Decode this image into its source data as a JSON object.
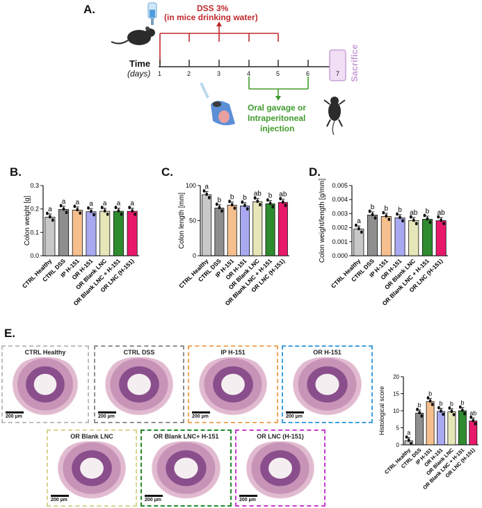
{
  "panelA": {
    "label": "A.",
    "dss_line1": "DSS 3%",
    "dss_line2": "(in mice drinking water)",
    "time_label": "Time",
    "days_label": "(days)",
    "days": [
      "1",
      "2",
      "3",
      "4",
      "5",
      "6",
      "7"
    ],
    "sacrifice": "Sacrifice",
    "treat_line1": "Oral gavage or",
    "treat_line2": "Intraperitoneal",
    "treat_line3": "injection",
    "colors": {
      "dss": "#c0282b",
      "treat": "#3f9a2c",
      "sacrifice": "#c9a1d6"
    }
  },
  "groups": [
    "CTRL Healthy",
    "CTRL DSS",
    "IP H-151",
    "OR H-151",
    "OR Blank LNC",
    "OR Blank LNC + H-151",
    "OR LNC (H-151)"
  ],
  "bar_colors": [
    "#c8c8c8",
    "#8e8e8e",
    "#f6c08e",
    "#a9a9f2",
    "#e6e6b8",
    "#2e8b2e",
    "#e8196b"
  ],
  "panel_labels": {
    "B": "B.",
    "C": "C.",
    "D": "D.",
    "E": "E."
  },
  "chart_data": [
    {
      "type": "bar",
      "panel": "B",
      "ylabel": "Colon weight [g]",
      "ylim": [
        0,
        0.3
      ],
      "yticks": [
        "0.0",
        "0.1",
        "0.2",
        "0.3"
      ],
      "values": [
        0.165,
        0.198,
        0.195,
        0.188,
        0.19,
        0.19,
        0.19
      ],
      "letters": [
        "a",
        "a",
        "a",
        "a",
        "a",
        "a",
        "a"
      ]
    },
    {
      "type": "bar",
      "panel": "C",
      "ylabel": "Colon length [mm]",
      "ylim": [
        0,
        100
      ],
      "yticks": [
        "0",
        "50",
        "100"
      ],
      "values": [
        87,
        68,
        72,
        71,
        77,
        74,
        76
      ],
      "letters": [
        "a",
        "b",
        "b",
        "b",
        "ab",
        "b",
        "ab"
      ]
    },
    {
      "type": "bar",
      "panel": "D",
      "ylabel": "Colon weight/length [g/mm]",
      "ylim": [
        0,
        0.005
      ],
      "yticks": [
        "0.000",
        "0.001",
        "0.002",
        "0.003",
        "0.004",
        "0.005"
      ],
      "values": [
        0.0019,
        0.0029,
        0.0028,
        0.0027,
        0.0025,
        0.0026,
        0.0025
      ],
      "letters": [
        "a",
        "b",
        "b",
        "b",
        "ab",
        "b",
        "ab"
      ]
    },
    {
      "type": "bar",
      "panel": "E",
      "ylabel": "Histological score",
      "ylim": [
        0,
        20
      ],
      "yticks": [
        "0",
        "5",
        "10",
        "15",
        "20"
      ],
      "values": [
        1.2,
        9.3,
        12.7,
        9.8,
        9.7,
        10.0,
        7.0
      ],
      "letters": [
        "a",
        "b",
        "b",
        "b",
        "b",
        "b",
        "ab"
      ]
    }
  ],
  "histology": {
    "scale_label": "200 µm",
    "panels": [
      {
        "title": "CTRL Healthy",
        "color": "#bdbdbd"
      },
      {
        "title": "CTRL DSS",
        "color": "#8f8f8f"
      },
      {
        "title": "IP H-151",
        "color": "#f2a65a"
      },
      {
        "title": "OR H-151",
        "color": "#3d9ee0"
      },
      {
        "title": "OR Blank LNC",
        "color": "#d9d28e"
      },
      {
        "title": "OR Blank LNC+ H-151",
        "color": "#1f8a2a"
      },
      {
        "title": "OR LNC (H-151)",
        "color": "#c43ad0"
      }
    ]
  }
}
